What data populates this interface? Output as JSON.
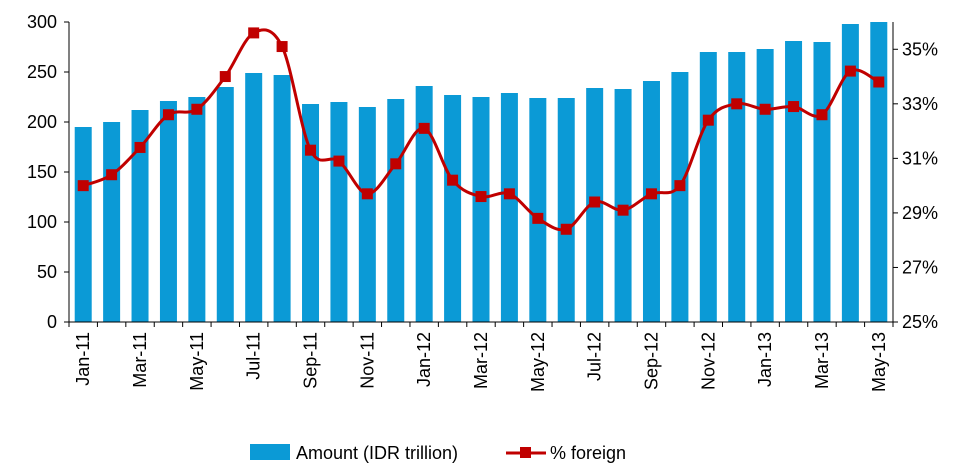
{
  "chart_data": {
    "type": "bar",
    "x": [
      "Jan-11",
      "Feb-11",
      "Mar-11",
      "Apr-11",
      "May-11",
      "Jun-11",
      "Jul-11",
      "Aug-11",
      "Sep-11",
      "Oct-11",
      "Nov-11",
      "Dec-11",
      "Jan-12",
      "Feb-12",
      "Mar-12",
      "Apr-12",
      "May-12",
      "Jun-12",
      "Jul-12",
      "Aug-12",
      "Sep-12",
      "Oct-12",
      "Nov-12",
      "Dec-12",
      "Jan-13",
      "Feb-13",
      "Mar-13",
      "Apr-13",
      "May-13"
    ],
    "x_tick_labels": [
      "Jan-11",
      "Mar-11",
      "May-11",
      "Jul-11",
      "Sep-11",
      "Nov-11",
      "Jan-12",
      "Mar-12",
      "May-12",
      "Jul-12",
      "Sep-12",
      "Nov-12",
      "Jan-13",
      "Mar-13",
      "May-13"
    ],
    "series": [
      {
        "name": "Amount (IDR trillion)",
        "type": "bar",
        "axis": "left",
        "values": [
          195,
          200,
          212,
          221,
          225,
          235,
          249,
          247,
          218,
          220,
          215,
          223,
          236,
          227,
          225,
          229,
          224,
          224,
          234,
          233,
          241,
          250,
          270,
          270,
          273,
          281,
          280,
          298,
          300
        ]
      },
      {
        "name": "% foreign",
        "type": "line",
        "axis": "right",
        "values": [
          30.0,
          30.4,
          31.4,
          32.6,
          32.8,
          34.0,
          35.6,
          35.1,
          31.3,
          30.9,
          29.7,
          30.8,
          32.1,
          30.2,
          29.6,
          29.7,
          28.8,
          28.4,
          29.4,
          29.1,
          29.7,
          30.0,
          32.4,
          33.0,
          32.8,
          32.9,
          32.6,
          34.2,
          33.8
        ]
      }
    ],
    "y_left": {
      "range": [
        0,
        300
      ],
      "ticks": [
        "0",
        "50",
        "100",
        "150",
        "200",
        "250",
        "300"
      ]
    },
    "y_right": {
      "range": [
        25,
        36
      ],
      "ticks": [
        "25%",
        "27%",
        "29%",
        "31%",
        "33%",
        "35%"
      ],
      "tick_values": [
        25,
        27,
        29,
        31,
        33,
        35
      ]
    },
    "legend": {
      "position": "bottom",
      "items": [
        "Amount (IDR trillion)",
        "% foreign"
      ]
    },
    "grid": false,
    "colors": {
      "bar": "#0b9ad6",
      "line": "#c00000",
      "marker": "#c00000",
      "axis": "#000000"
    }
  }
}
